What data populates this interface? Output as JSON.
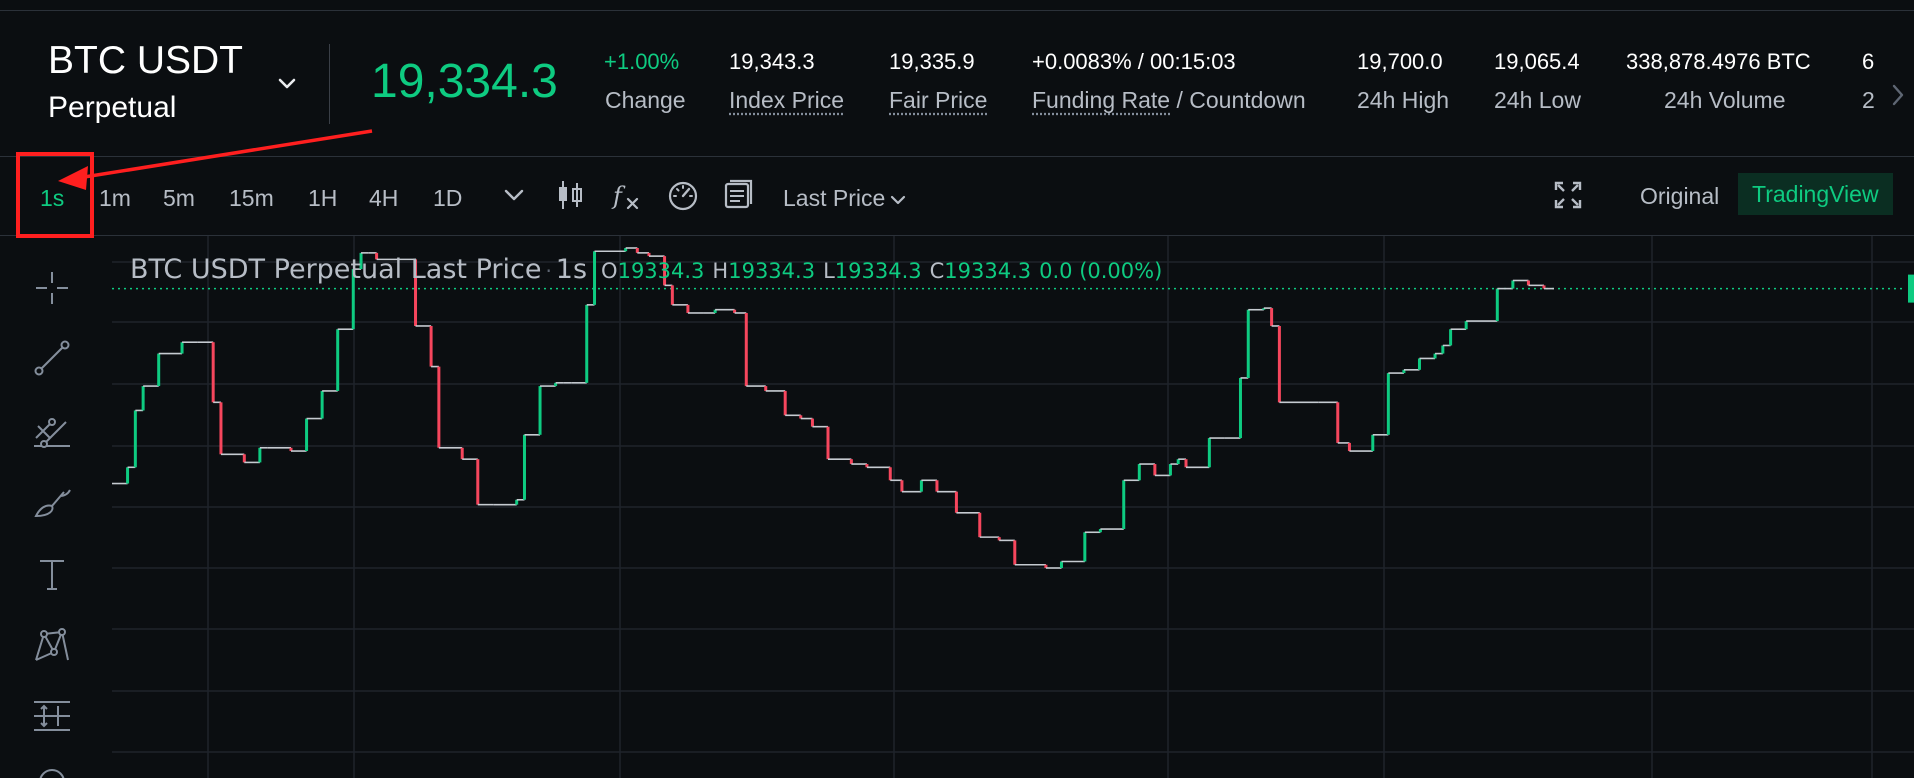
{
  "header": {
    "symbol": "BTC USDT",
    "contract_type": "Perpetual",
    "last_price": "19,334.3",
    "stats": [
      {
        "value": "+1.00%",
        "label": "Change",
        "value_color": "#0ecb81",
        "underline": false
      },
      {
        "value": "19,343.3",
        "label": "Index Price",
        "underline": true
      },
      {
        "value": "19,335.9",
        "label": "Fair Price",
        "underline": true
      },
      {
        "value": "+0.0083% / 00:15:03",
        "label_main": "Funding Rate",
        "label_rest": " / Countdown",
        "underline": true
      },
      {
        "value": "19,700.0",
        "label": "24h High",
        "underline": false
      },
      {
        "value": "19,065.4",
        "label": "24h Low",
        "underline": false
      },
      {
        "value": "338,878.4976 BTC",
        "label": "24h Volume",
        "underline": false
      },
      {
        "value": "6",
        "label": "2",
        "underline": false
      }
    ]
  },
  "toolbar": {
    "timeframes": [
      "1s",
      "1m",
      "5m",
      "15m",
      "1H",
      "4H",
      "1D"
    ],
    "active_timeframe": "1s",
    "icons": [
      "chevron-down-icon",
      "candlestick-icon",
      "function-icon",
      "gauge-icon",
      "layers-icon"
    ],
    "price_type": "Last Price",
    "view_original": "Original",
    "view_tradingview": "TradingView"
  },
  "sidebar": {
    "tools": [
      "crosshair-icon",
      "trendline-icon",
      "parallel-channel-icon",
      "brush-icon",
      "text-icon",
      "pattern-icon",
      "measure-icon"
    ]
  },
  "legend": {
    "title": "BTC USDT Perpetual Last Price",
    "dot": "·",
    "interval": "1s",
    "o_label": "O",
    "o": "19334.3",
    "h_label": "H",
    "h": "19334.3",
    "l_label": "L",
    "l": "19334.3",
    "c_label": "C",
    "c": "19334.3",
    "change": "0.0 (0.00%)"
  },
  "colors": {
    "up": "#0ecb81",
    "down": "#f6465d",
    "accent_annotation": "#ff1f1f",
    "background": "#0b0e11"
  },
  "chart_data": {
    "type": "line",
    "style": "step",
    "x": [
      0,
      4,
      6,
      8,
      12,
      18,
      22,
      26,
      28,
      34,
      38,
      40,
      46,
      50,
      54,
      58,
      62,
      64,
      66,
      68,
      78,
      82,
      84,
      90,
      94,
      98,
      104,
      106,
      110,
      114,
      116,
      118,
      122,
      124,
      132,
      135,
      138,
      142,
      144,
      148,
      152,
      155,
      160,
      163,
      168,
      173,
      177,
      180,
      184,
      190,
      194,
      200,
      203,
      208,
      212,
      217,
      223,
      228,
      232,
      240,
      244,
      250,
      254,
      260,
      264,
      268,
      272,
      274,
      276,
      282,
      286,
      290,
      292,
      296,
      298,
      300,
      310,
      315,
      318,
      324,
      328,
      332,
      336,
      340,
      342,
      344,
      348,
      356,
      360,
      364,
      368
    ],
    "y": [
      150,
      160,
      195,
      210,
      230,
      237,
      237,
      200,
      168,
      163,
      172,
      172,
      170,
      190,
      207,
      245,
      282,
      292,
      292,
      288,
      247,
      222,
      172,
      165,
      137,
      137,
      140,
      180,
      210,
      212,
      212,
      212,
      260,
      293,
      295,
      292,
      290,
      272,
      260,
      255,
      255,
      257,
      255,
      210,
      207,
      192,
      190,
      185,
      165,
      162,
      160,
      152,
      145,
      152,
      145,
      132,
      117,
      115,
      100,
      98,
      102,
      120,
      122,
      152,
      162,
      155,
      162,
      165,
      160,
      178,
      178,
      215,
      257,
      258,
      247,
      200,
      200,
      175,
      170,
      180,
      218,
      220,
      227,
      230,
      235,
      245,
      250,
      270,
      275,
      272,
      270
    ],
    "last_value": 19334.3,
    "series_color_up": "#0ecb81",
    "series_color_down": "#f6465d",
    "grid": true,
    "last_price_line": true
  }
}
